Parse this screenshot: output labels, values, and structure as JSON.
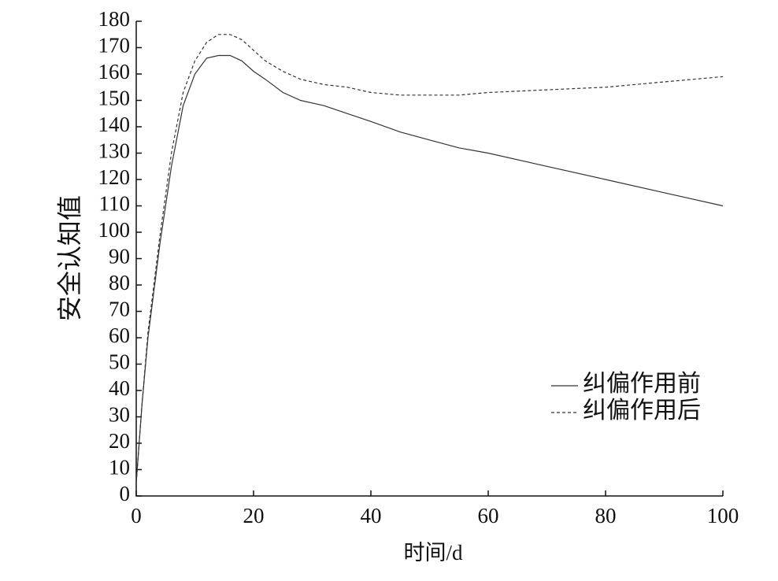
{
  "chart_data": {
    "type": "line",
    "xlabel": "时间/d",
    "ylabel": "安全认知值",
    "x": [
      0,
      1,
      2,
      4,
      6,
      8,
      10,
      12,
      14,
      16,
      18,
      20,
      22,
      25,
      28,
      32,
      36,
      40,
      45,
      50,
      55,
      60,
      70,
      80,
      90,
      100
    ],
    "series": [
      {
        "name": "纠偏作用前",
        "color": "#333333",
        "linestyle": "solid",
        "values": [
          5,
          35,
          60,
          95,
          125,
          148,
          160,
          166,
          167,
          167,
          165,
          161,
          158,
          153,
          150,
          148,
          145,
          142,
          138,
          135,
          132,
          130,
          125,
          120,
          115,
          110
        ]
      },
      {
        "name": "纠偏作用后",
        "color": "#333333",
        "linestyle": "dashed",
        "values": [
          5,
          35,
          62,
          98,
          130,
          153,
          165,
          172,
          175,
          175,
          173,
          169,
          165,
          161,
          158,
          156,
          155,
          153,
          152,
          152,
          152,
          153,
          154,
          155,
          157,
          159
        ]
      }
    ],
    "xlim": [
      0,
      100
    ],
    "xticks": [
      0,
      20,
      40,
      60,
      80,
      100
    ],
    "ylim": [
      0,
      180
    ],
    "yticks": [
      0,
      10,
      20,
      30,
      40,
      50,
      60,
      70,
      80,
      90,
      100,
      110,
      120,
      130,
      140,
      150,
      160,
      170,
      180
    ],
    "legend": "lower right"
  }
}
